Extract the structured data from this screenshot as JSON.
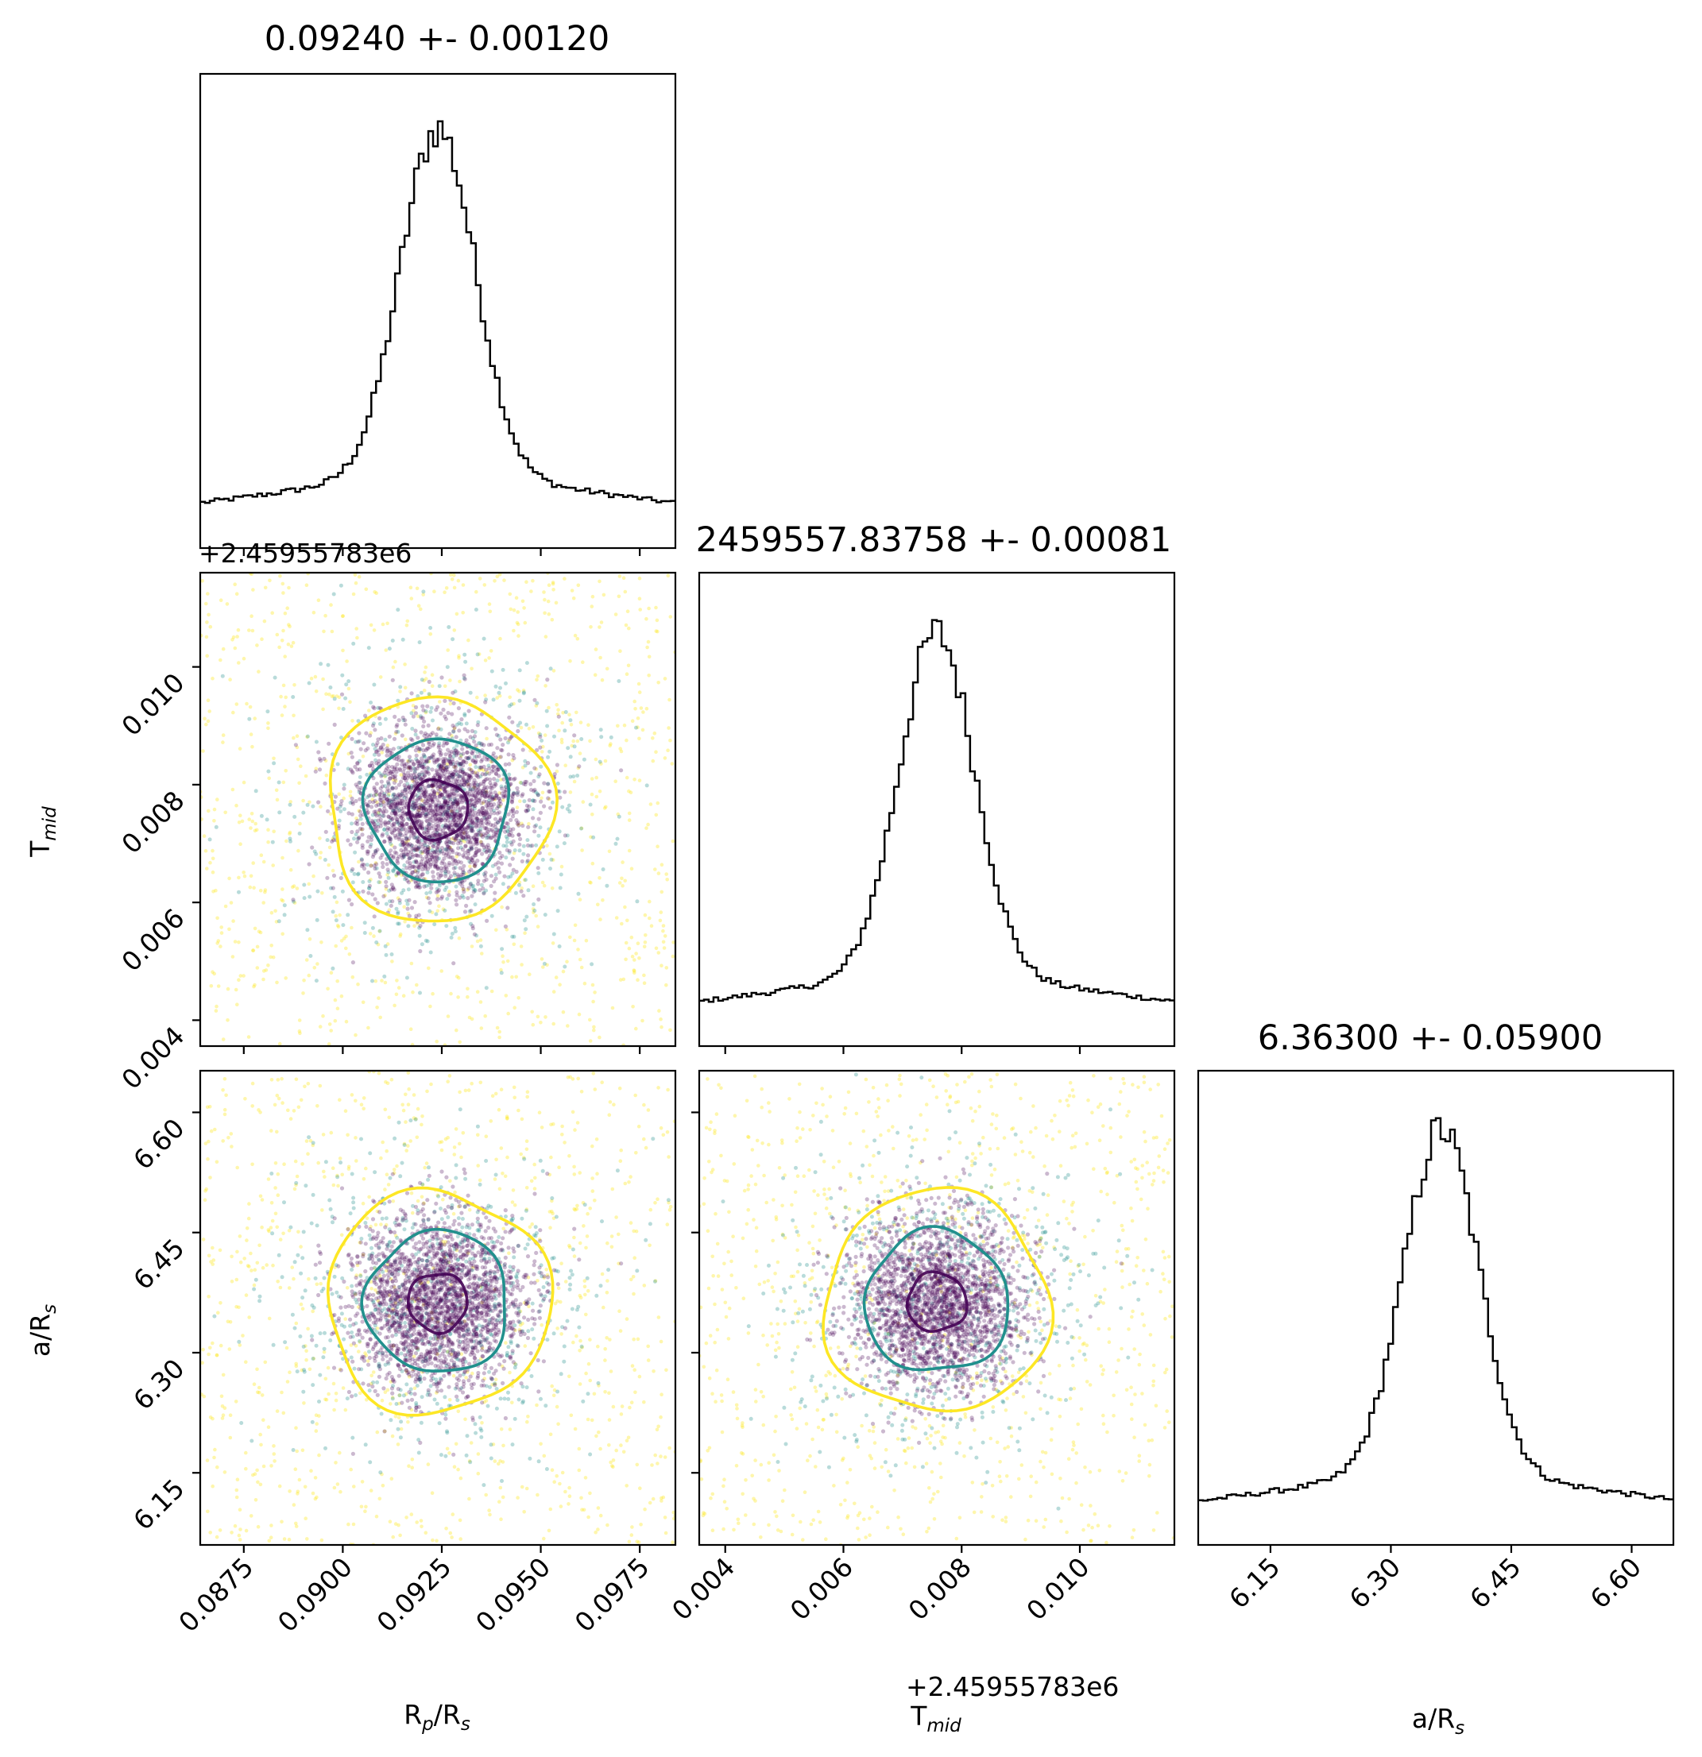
{
  "chart_data": {
    "type": "corner",
    "parameters": [
      {
        "key": "rp",
        "label_main": "R",
        "label_sub": "p",
        "label_tail": "/R",
        "label_tail_sub": "s"
      },
      {
        "key": "tmid",
        "label_main": "T",
        "label_sub": "mid",
        "label_tail": "",
        "label_tail_sub": ""
      },
      {
        "key": "ars",
        "label_main": "a/R",
        "label_sub": "s",
        "label_tail": "",
        "label_tail_sub": ""
      }
    ],
    "titles": [
      "0.09240 +- 0.00120",
      "2459557.83758 +- 0.00081",
      "6.36300 +- 0.05900"
    ],
    "offset_label": "+2.45955783e6",
    "ranges": {
      "rp": [
        0.0864,
        0.0984
      ],
      "tmid_offset": [
        0.00356,
        0.0116
      ],
      "ars": [
        6.06,
        6.652
      ]
    },
    "ticks": {
      "rp": [
        "0.0875",
        "0.0900",
        "0.0925",
        "0.0950",
        "0.0975"
      ],
      "tmid": [
        "0.004",
        "0.006",
        "0.008",
        "0.010"
      ],
      "ars": [
        "6.15",
        "6.30",
        "6.45",
        "6.60"
      ]
    },
    "estimates": {
      "rp": {
        "mean": 0.0924,
        "std": 0.0012
      },
      "tmid_offset": {
        "mean": 0.00758,
        "std": 0.00081
      },
      "ars": {
        "mean": 6.363,
        "std": 0.059
      }
    },
    "contour_colors": [
      "#440154",
      "#21908d",
      "#fde725"
    ],
    "scatter_colors": [
      "#440154",
      "#21908d",
      "#fde725"
    ],
    "hist_color": "#000000"
  }
}
